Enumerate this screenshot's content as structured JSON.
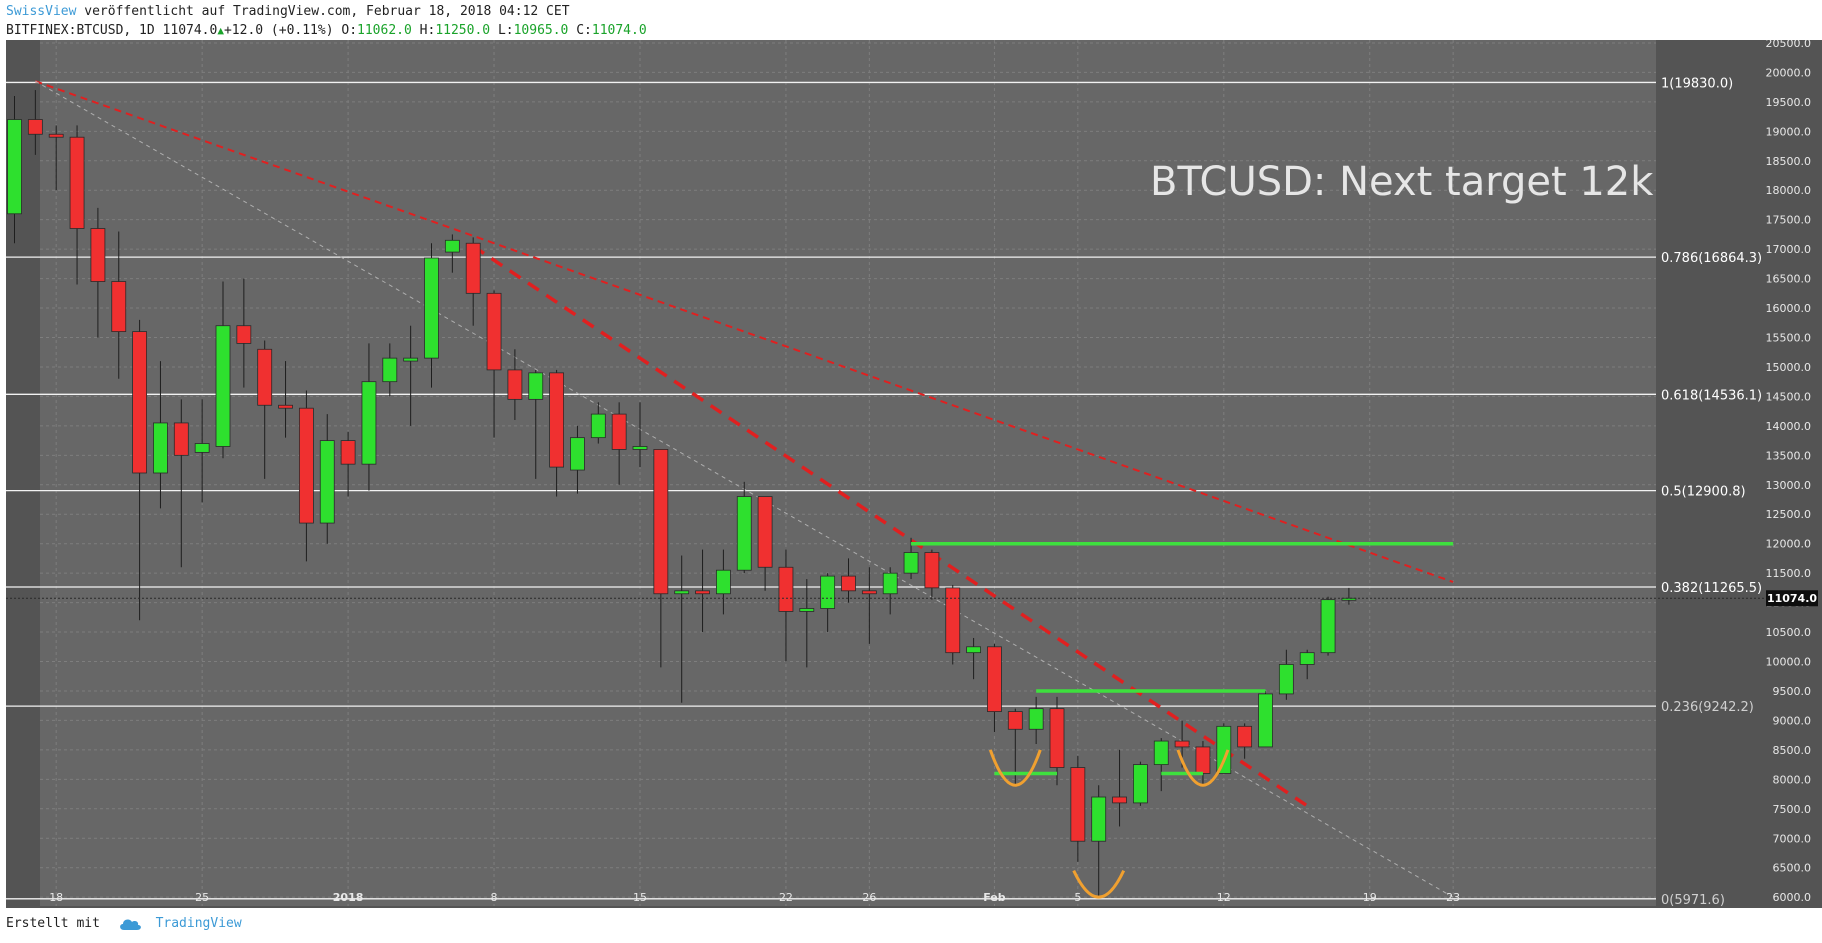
{
  "header": {
    "username": "SwissView",
    "published_text": "veröffentlicht auf TradingView.com, Februar 18, 2018 04:12 CET",
    "symbol": "BITFINEX:BTCUSD, 1D",
    "last": "11074.0",
    "change": "+12.0 (+0.11%)",
    "o_label": "O:",
    "o_value": "11062.0",
    "h_label": "H:",
    "h_value": "11250.0",
    "l_label": "L:",
    "l_value": "10965.0",
    "c_label": "C:",
    "c_value": "11074.0"
  },
  "footer": {
    "created_with": "Erstellt mit",
    "brand": "TradingView"
  },
  "colors": {
    "background": "#545454",
    "plot": "#676767",
    "up": "#2ee02e",
    "down": "#f03030",
    "trend_red": "#e02020",
    "level_green": "#3ee03e",
    "pattern_orange": "#f0a030"
  },
  "chart_data": {
    "type": "candlestick",
    "title": "BTCUSD: Next target 12k",
    "xlabel": "",
    "ylabel": "",
    "ylim": [
      5850,
      20550
    ],
    "grid": true,
    "y_ticks": [
      6000,
      6500,
      7000,
      7500,
      8000,
      8500,
      9000,
      9500,
      10000,
      10500,
      11000,
      11500,
      12000,
      12500,
      13000,
      13500,
      14000,
      14500,
      15000,
      15500,
      16000,
      16500,
      17000,
      17500,
      18000,
      18500,
      19000,
      19500,
      20000,
      20500
    ],
    "x_ticks": [
      {
        "label": "18",
        "date": "2017-12-18",
        "bold": false
      },
      {
        "label": "25",
        "date": "2017-12-25",
        "bold": false
      },
      {
        "label": "2018",
        "date": "2018-01-01",
        "bold": true
      },
      {
        "label": "8",
        "date": "2018-01-08",
        "bold": false
      },
      {
        "label": "15",
        "date": "2018-01-15",
        "bold": false
      },
      {
        "label": "22",
        "date": "2018-01-22",
        "bold": false
      },
      {
        "label": "26",
        "date": "2018-01-26",
        "bold": false
      },
      {
        "label": "Feb",
        "date": "2018-02-01",
        "bold": true
      },
      {
        "label": "5",
        "date": "2018-02-05",
        "bold": false
      },
      {
        "label": "12",
        "date": "2018-02-12",
        "bold": false
      },
      {
        "label": "19",
        "date": "2018-02-19",
        "bold": false
      },
      {
        "label": "23",
        "date": "2018-02-23",
        "bold": false
      }
    ],
    "current_price_label": "11074.0",
    "candles": [
      {
        "date": "2017-12-16",
        "open": 17600,
        "high": 19600,
        "low": 17100,
        "close": 19200
      },
      {
        "date": "2017-12-17",
        "open": 19200,
        "high": 19700,
        "low": 18600,
        "close": 18950
      },
      {
        "date": "2017-12-18",
        "open": 18950,
        "high": 19100,
        "low": 18000,
        "close": 18900
      },
      {
        "date": "2017-12-19",
        "open": 18900,
        "high": 19100,
        "low": 16400,
        "close": 17350
      },
      {
        "date": "2017-12-20",
        "open": 17350,
        "high": 17700,
        "low": 15500,
        "close": 16450
      },
      {
        "date": "2017-12-21",
        "open": 16450,
        "high": 17300,
        "low": 14800,
        "close": 15600
      },
      {
        "date": "2017-12-22",
        "open": 15600,
        "high": 15800,
        "low": 10700,
        "close": 13200
      },
      {
        "date": "2017-12-23",
        "open": 13200,
        "high": 15100,
        "low": 12600,
        "close": 14050
      },
      {
        "date": "2017-12-24",
        "open": 14050,
        "high": 14450,
        "low": 11600,
        "close": 13500
      },
      {
        "date": "2017-12-25",
        "open": 13550,
        "high": 14450,
        "low": 12700,
        "close": 13700
      },
      {
        "date": "2017-12-26",
        "open": 13650,
        "high": 16450,
        "low": 13450,
        "close": 15700
      },
      {
        "date": "2017-12-27",
        "open": 15700,
        "high": 16500,
        "low": 14650,
        "close": 15400
      },
      {
        "date": "2017-12-28",
        "open": 15300,
        "high": 15450,
        "low": 13100,
        "close": 14350
      },
      {
        "date": "2017-12-29",
        "open": 14350,
        "high": 15100,
        "low": 13800,
        "close": 14300
      },
      {
        "date": "2017-12-30",
        "open": 14300,
        "high": 14600,
        "low": 11700,
        "close": 12350
      },
      {
        "date": "2017-12-31",
        "open": 12350,
        "high": 14200,
        "low": 12000,
        "close": 13750
      },
      {
        "date": "2018-01-01",
        "open": 13750,
        "high": 13900,
        "low": 12800,
        "close": 13350
      },
      {
        "date": "2018-01-02",
        "open": 13350,
        "high": 15400,
        "low": 12900,
        "close": 14750
      },
      {
        "date": "2018-01-03",
        "open": 14750,
        "high": 15400,
        "low": 14500,
        "close": 15150
      },
      {
        "date": "2018-01-04",
        "open": 15100,
        "high": 15700,
        "low": 14000,
        "close": 15150
      },
      {
        "date": "2018-01-05",
        "open": 15150,
        "high": 17100,
        "low": 14650,
        "close": 16850
      },
      {
        "date": "2018-01-06",
        "open": 16950,
        "high": 17250,
        "low": 16600,
        "close": 17150
      },
      {
        "date": "2018-01-07",
        "open": 17100,
        "high": 17200,
        "low": 15700,
        "close": 16250
      },
      {
        "date": "2018-01-08",
        "open": 16250,
        "high": 16300,
        "low": 13800,
        "close": 14950
      },
      {
        "date": "2018-01-09",
        "open": 14950,
        "high": 15300,
        "low": 14100,
        "close": 14450
      },
      {
        "date": "2018-01-10",
        "open": 14450,
        "high": 14950,
        "low": 13100,
        "close": 14900
      },
      {
        "date": "2018-01-11",
        "open": 14900,
        "high": 14950,
        "low": 12800,
        "close": 13300
      },
      {
        "date": "2018-01-12",
        "open": 13250,
        "high": 14000,
        "low": 12850,
        "close": 13800
      },
      {
        "date": "2018-01-13",
        "open": 13800,
        "high": 14400,
        "low": 13700,
        "close": 14200
      },
      {
        "date": "2018-01-14",
        "open": 14200,
        "high": 14400,
        "low": 13000,
        "close": 13600
      },
      {
        "date": "2018-01-15",
        "open": 13600,
        "high": 14400,
        "low": 13300,
        "close": 13650
      },
      {
        "date": "2018-01-16",
        "open": 13600,
        "high": 13600,
        "low": 9900,
        "close": 11150
      },
      {
        "date": "2018-01-17",
        "open": 11150,
        "high": 11800,
        "low": 9300,
        "close": 11200
      },
      {
        "date": "2018-01-18",
        "open": 11200,
        "high": 11900,
        "low": 10500,
        "close": 11150
      },
      {
        "date": "2018-01-19",
        "open": 11150,
        "high": 11900,
        "low": 10800,
        "close": 11550
      },
      {
        "date": "2018-01-20",
        "open": 11550,
        "high": 13050,
        "low": 11500,
        "close": 12800
      },
      {
        "date": "2018-01-21",
        "open": 12800,
        "high": 12800,
        "low": 11200,
        "close": 11600
      },
      {
        "date": "2018-01-22",
        "open": 11600,
        "high": 11900,
        "low": 10000,
        "close": 10850
      },
      {
        "date": "2018-01-23",
        "open": 10850,
        "high": 11400,
        "low": 9900,
        "close": 10900
      },
      {
        "date": "2018-01-24",
        "open": 10900,
        "high": 11500,
        "low": 10500,
        "close": 11450
      },
      {
        "date": "2018-01-25",
        "open": 11450,
        "high": 11750,
        "low": 11000,
        "close": 11200
      },
      {
        "date": "2018-01-26",
        "open": 11200,
        "high": 11600,
        "low": 10300,
        "close": 11150
      },
      {
        "date": "2018-01-27",
        "open": 11150,
        "high": 11600,
        "low": 10800,
        "close": 11500
      },
      {
        "date": "2018-01-28",
        "open": 11500,
        "high": 12100,
        "low": 11400,
        "close": 11850
      },
      {
        "date": "2018-01-29",
        "open": 11850,
        "high": 11900,
        "low": 11050,
        "close": 11250
      },
      {
        "date": "2018-01-30",
        "open": 11250,
        "high": 11300,
        "low": 9950,
        "close": 10150
      },
      {
        "date": "2018-01-31",
        "open": 10150,
        "high": 10400,
        "low": 9700,
        "close": 10250
      },
      {
        "date": "2018-02-01",
        "open": 10250,
        "high": 10300,
        "low": 8800,
        "close": 9150
      },
      {
        "date": "2018-02-02",
        "open": 9150,
        "high": 9200,
        "low": 7900,
        "close": 8850
      },
      {
        "date": "2018-02-03",
        "open": 8850,
        "high": 9400,
        "low": 8600,
        "close": 9200
      },
      {
        "date": "2018-02-04",
        "open": 9200,
        "high": 9400,
        "low": 7900,
        "close": 8200
      },
      {
        "date": "2018-02-05",
        "open": 8200,
        "high": 8400,
        "low": 6600,
        "close": 6950
      },
      {
        "date": "2018-02-06",
        "open": 6950,
        "high": 7900,
        "low": 6000,
        "close": 7700
      },
      {
        "date": "2018-02-07",
        "open": 7700,
        "high": 8500,
        "low": 7200,
        "close": 7600
      },
      {
        "date": "2018-02-08",
        "open": 7600,
        "high": 8300,
        "low": 7550,
        "close": 8250
      },
      {
        "date": "2018-02-09",
        "open": 8250,
        "high": 8700,
        "low": 7800,
        "close": 8650
      },
      {
        "date": "2018-02-10",
        "open": 8650,
        "high": 9000,
        "low": 8200,
        "close": 8550
      },
      {
        "date": "2018-02-11",
        "open": 8550,
        "high": 8650,
        "low": 7900,
        "close": 8100
      },
      {
        "date": "2018-02-12",
        "open": 8100,
        "high": 8950,
        "low": 8100,
        "close": 8900
      },
      {
        "date": "2018-02-13",
        "open": 8900,
        "high": 8950,
        "low": 8350,
        "close": 8550
      },
      {
        "date": "2018-02-14",
        "open": 8550,
        "high": 9500,
        "low": 8550,
        "close": 9450
      },
      {
        "date": "2018-02-15",
        "open": 9450,
        "high": 10200,
        "low": 9350,
        "close": 9950
      },
      {
        "date": "2018-02-16",
        "open": 9950,
        "high": 10200,
        "low": 9700,
        "close": 10150
      },
      {
        "date": "2018-02-17",
        "open": 10150,
        "high": 11100,
        "low": 10100,
        "close": 11050
      },
      {
        "date": "2018-02-18",
        "open": 11062,
        "high": 11250,
        "low": 10965,
        "close": 11074
      }
    ],
    "fib_levels": [
      {
        "ratio": "1",
        "value": 19830.0,
        "label": "1(19830.0)"
      },
      {
        "ratio": "0.786",
        "value": 16864.3,
        "label": "0.786(16864.3)"
      },
      {
        "ratio": "0.618",
        "value": 14536.1,
        "label": "0.618(14536.1)"
      },
      {
        "ratio": "0.5",
        "value": 12900.8,
        "label": "0.5(12900.8)"
      },
      {
        "ratio": "0.382",
        "value": 11265.5,
        "label": "0.382(11265.5)"
      },
      {
        "ratio": "0.236",
        "value": 9242.2,
        "label": "0.236(9242.2)"
      },
      {
        "ratio": "0",
        "value": 5971.6,
        "label": "0(5971.6)"
      }
    ],
    "trendlines": [
      {
        "style": "red-dashed",
        "from": {
          "date": "2017-12-17",
          "price": 19850
        },
        "to": {
          "date": "2018-02-23",
          "price": 11350
        }
      },
      {
        "style": "red-dashed-bold",
        "from": {
          "date": "2018-01-07",
          "price": 17050
        },
        "to": {
          "date": "2018-02-16",
          "price": 7550
        }
      },
      {
        "style": "grey-dashed",
        "from": {
          "date": "2017-12-17",
          "price": 19850
        },
        "to": {
          "date": "2018-02-23",
          "price": 6000
        }
      }
    ],
    "horizontal_levels": [
      {
        "style": "green",
        "price": 12000,
        "from": "2018-01-28",
        "to": "2018-02-23"
      },
      {
        "style": "green",
        "price": 9500,
        "from": "2018-02-03",
        "to": "2018-02-14"
      },
      {
        "style": "green",
        "price": 8100,
        "from": "2018-02-01",
        "to": "2018-02-04"
      },
      {
        "style": "green",
        "price": 8100,
        "from": "2018-02-09",
        "to": "2018-02-11"
      }
    ],
    "pattern_arcs": [
      {
        "center": {
          "date": "2018-02-02",
          "price": 8500
        },
        "depth": 600
      },
      {
        "center": {
          "date": "2018-02-06",
          "price": 6450
        },
        "depth": 450
      },
      {
        "center": {
          "date": "2018-02-11",
          "price": 8500
        },
        "depth": 600
      }
    ]
  }
}
